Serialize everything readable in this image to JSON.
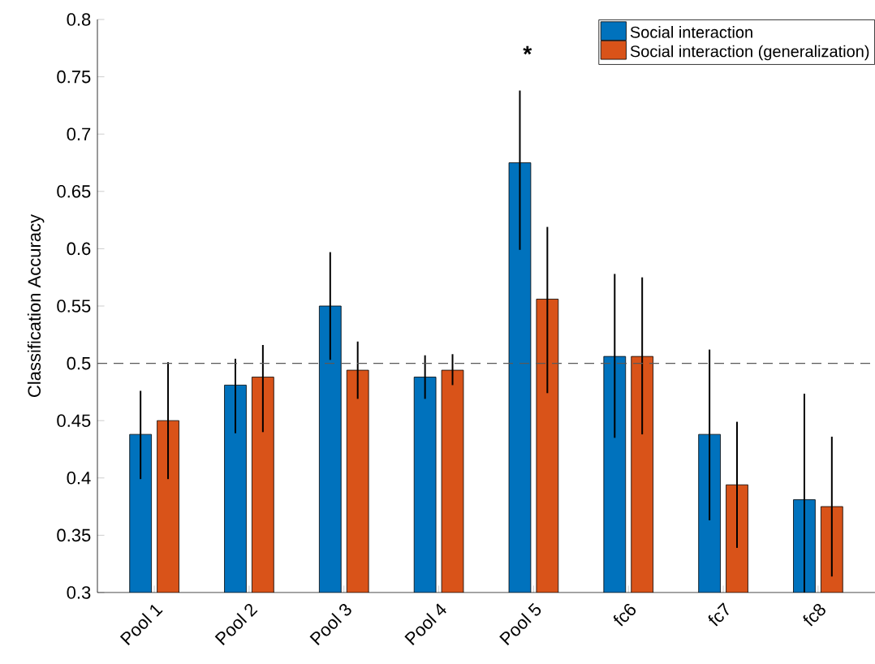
{
  "chart_data": {
    "type": "bar",
    "ylabel": "Classification Accuracy",
    "categories": [
      "Pool 1",
      "Pool 2",
      "Pool 3",
      "Pool 4",
      "Pool 5",
      "fc6",
      "fc7",
      "fc8"
    ],
    "series": [
      {
        "name": "Social interaction",
        "color": "#0072bd",
        "values": [
          0.438,
          0.481,
          0.55,
          0.488,
          0.675,
          0.506,
          0.438,
          0.381
        ],
        "errors": [
          [
            0.399,
            0.476
          ],
          [
            0.439,
            0.504
          ],
          [
            0.503,
            0.597
          ],
          [
            0.469,
            0.507
          ],
          [
            0.599,
            0.738
          ],
          [
            0.435,
            0.578
          ],
          [
            0.363,
            0.512
          ],
          [
            0.3,
            0.4735
          ]
        ]
      },
      {
        "name": "Social interaction (generalization)",
        "color": "#d95319",
        "values": [
          0.45,
          0.488,
          0.494,
          0.494,
          0.556,
          0.506,
          0.394,
          0.375
        ],
        "errors": [
          [
            0.399,
            0.501
          ],
          [
            0.44,
            0.516
          ],
          [
            0.469,
            0.519
          ],
          [
            0.481,
            0.508
          ],
          [
            0.474,
            0.619
          ],
          [
            0.438,
            0.575
          ],
          [
            0.339,
            0.449
          ],
          [
            0.314,
            0.436
          ]
        ]
      }
    ],
    "ylim": [
      0.3,
      0.8
    ],
    "yticks": [
      0.3,
      0.35,
      0.4,
      0.45,
      0.5,
      0.55,
      0.6,
      0.65,
      0.7,
      0.75,
      0.8
    ],
    "ref_lines": [
      {
        "axis": "y",
        "value": 0.5,
        "color": "#595959",
        "line_style": "dashed"
      }
    ],
    "annotations": [
      "*"
    ],
    "legend": "top right",
    "grid": false
  }
}
